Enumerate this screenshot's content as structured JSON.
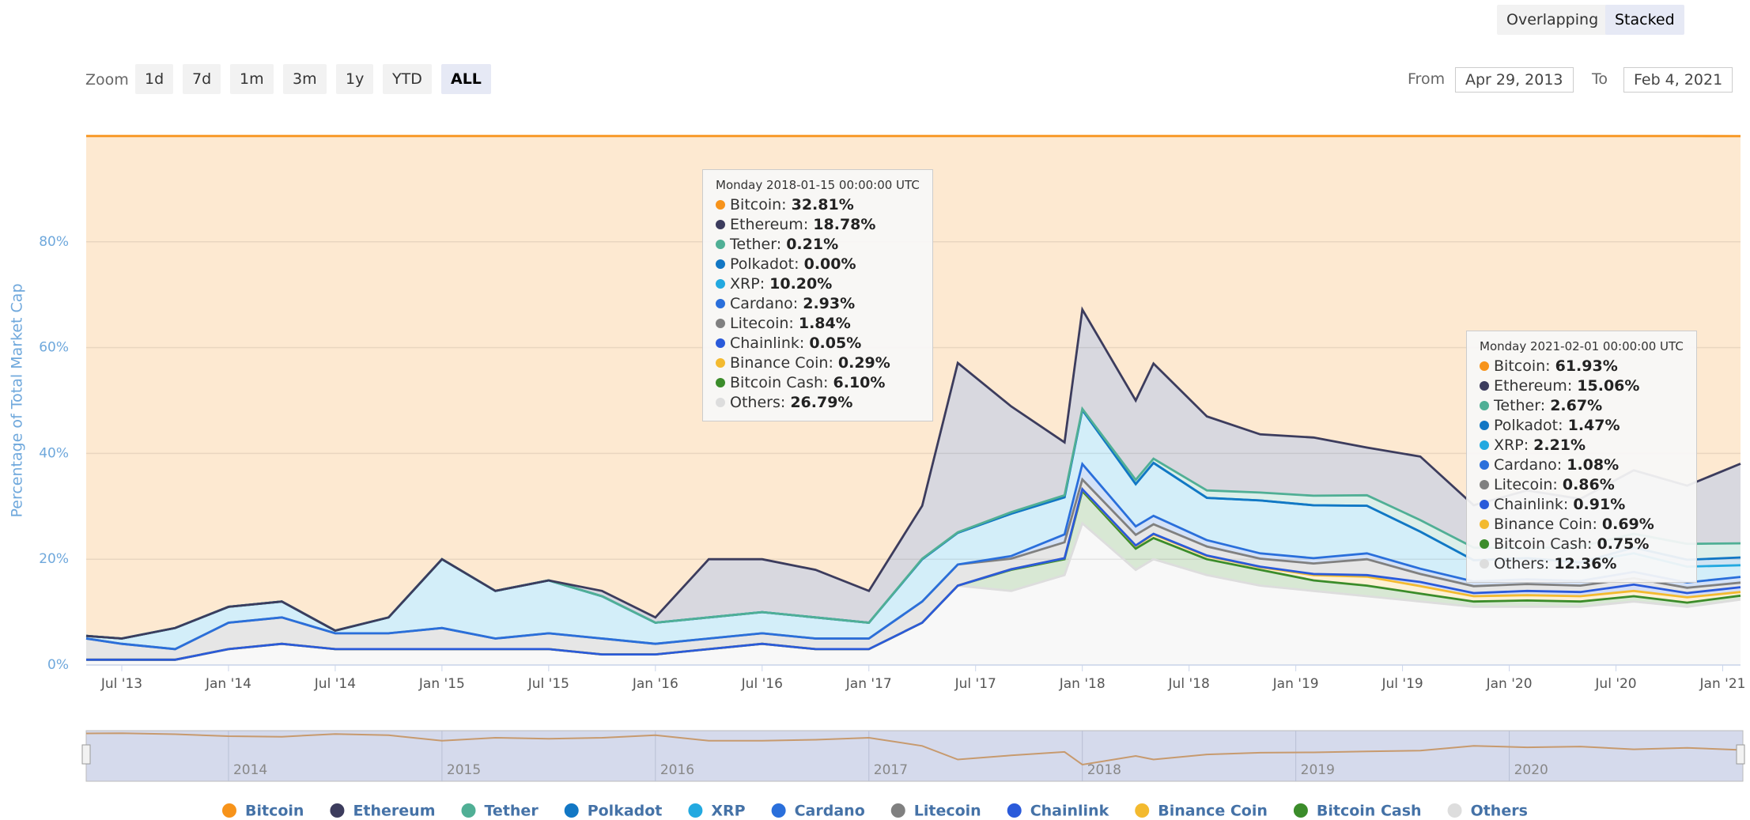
{
  "chart_data": {
    "type": "stacked_area",
    "y_label": "Percentage of Total Market Cap",
    "controls": {
      "modes": [
        "Overlapping",
        "Stacked"
      ],
      "zoom_label": "Zoom",
      "zoom": [
        "1d",
        "7d",
        "1m",
        "3m",
        "1y",
        "YTD",
        "ALL"
      ],
      "from_label": "From",
      "from": "Apr 29, 2013",
      "to_label": "To",
      "to": "Feb 4, 2021"
    },
    "x": [
      "2013-05",
      "2013-07",
      "2013-10",
      "2014-01",
      "2014-04",
      "2014-07",
      "2014-10",
      "2015-01",
      "2015-04",
      "2015-07",
      "2015-10",
      "2016-01",
      "2016-04",
      "2016-07",
      "2016-10",
      "2017-01",
      "2017-04",
      "2017-06",
      "2017-09",
      "2017-12",
      "2018-01",
      "2018-04",
      "2018-05",
      "2018-08",
      "2018-11",
      "2019-02",
      "2019-05",
      "2019-08",
      "2019-11",
      "2020-02",
      "2020-05",
      "2020-08",
      "2020-11",
      "2021-02"
    ],
    "xlim": [
      "2013-05",
      "2021-02"
    ],
    "xticks": [
      {
        "value": "2013-07",
        "label": "Jul '13"
      },
      {
        "value": "2014-01",
        "label": "Jan '14"
      },
      {
        "value": "2014-07",
        "label": "Jul '14"
      },
      {
        "value": "2015-01",
        "label": "Jan '15"
      },
      {
        "value": "2015-07",
        "label": "Jul '15"
      },
      {
        "value": "2016-01",
        "label": "Jan '16"
      },
      {
        "value": "2016-07",
        "label": "Jul '16"
      },
      {
        "value": "2017-01",
        "label": "Jan '17"
      },
      {
        "value": "2017-07",
        "label": "Jul '17"
      },
      {
        "value": "2018-01",
        "label": "Jan '18"
      },
      {
        "value": "2018-07",
        "label": "Jul '18"
      },
      {
        "value": "2019-01",
        "label": "Jan '19"
      },
      {
        "value": "2019-07",
        "label": "Jul '19"
      },
      {
        "value": "2020-01",
        "label": "Jan '20"
      },
      {
        "value": "2020-07",
        "label": "Jul '20"
      },
      {
        "value": "2021-01",
        "label": "Jan '21"
      }
    ],
    "ylim": [
      0,
      100
    ],
    "yticks": [
      {
        "value": 0,
        "label": "0%"
      },
      {
        "value": 20,
        "label": "20%"
      },
      {
        "value": 40,
        "label": "40%"
      },
      {
        "value": 60,
        "label": "60%"
      },
      {
        "value": 80,
        "label": "80%"
      }
    ],
    "grid": true,
    "navigator_ticks": [
      2014,
      2015,
      2016,
      2017,
      2018,
      2019,
      2020
    ],
    "series": [
      {
        "name": "Bitcoin",
        "color": "#f7931a",
        "values": [
          94.5,
          95,
          93,
          89,
          88,
          93.5,
          91,
          80,
          86,
          84,
          86,
          91,
          80,
          80,
          82,
          86,
          69.9,
          42.9,
          51.1,
          57.9,
          32.81,
          50,
          43,
          53,
          56.4,
          57,
          58.9,
          60.6,
          69.8,
          67,
          68.6,
          63.2,
          66.1,
          61.93
        ]
      },
      {
        "name": "Ethereum",
        "color": "#3c3c5d",
        "values": [
          0,
          0,
          0,
          0,
          0,
          0,
          0,
          0,
          0,
          0,
          1,
          1,
          11,
          10,
          9,
          6,
          10,
          32,
          20,
          10,
          18.78,
          15,
          18,
          14,
          11,
          11,
          9,
          12,
          8,
          11,
          9,
          12,
          11,
          15.06
        ]
      },
      {
        "name": "Tether",
        "color": "#50af95",
        "values": [
          0,
          0,
          0,
          0,
          0,
          0,
          0,
          0,
          0,
          0,
          0,
          0,
          0,
          0,
          0,
          0,
          0.1,
          0.1,
          0.3,
          0.4,
          0.21,
          0.8,
          0.8,
          1.4,
          1.5,
          1.8,
          2,
          2.2,
          2.4,
          1.8,
          3,
          2.6,
          3,
          2.67
        ]
      },
      {
        "name": "Polkadot",
        "color": "#1277c4",
        "values": [
          0,
          0,
          0,
          0,
          0,
          0,
          0,
          0,
          0,
          0,
          0,
          0,
          0,
          0,
          0,
          0,
          0,
          0,
          0,
          0,
          0.0,
          0,
          0,
          0,
          0,
          0,
          0,
          0,
          0,
          0,
          0,
          1.1,
          1.3,
          1.47
        ]
      },
      {
        "name": "XRP",
        "color": "#23a9e0",
        "values": [
          0.5,
          1,
          4,
          3,
          3,
          0.5,
          3,
          13,
          9,
          10,
          8,
          4,
          4,
          4,
          4,
          3,
          8,
          6,
          8,
          7,
          10.2,
          8,
          10,
          8,
          10,
          10,
          9,
          7,
          4,
          4,
          3.5,
          3.5,
          3,
          2.21
        ]
      },
      {
        "name": "Cardano",
        "color": "#2a6fdb",
        "values": [
          0,
          0,
          0,
          0,
          0,
          0,
          0,
          0,
          0,
          0,
          0,
          0,
          0,
          0,
          0,
          0,
          0,
          0,
          0.5,
          1.5,
          2.93,
          1.6,
          1.6,
          1.2,
          1,
          1,
          1.1,
          1,
          0.9,
          0.9,
          0.9,
          1.2,
          1,
          1.08
        ]
      },
      {
        "name": "Litecoin",
        "color": "#808080",
        "values": [
          4,
          3,
          2,
          5,
          5,
          3,
          3,
          4,
          2,
          3,
          3,
          2,
          2,
          2,
          2,
          2,
          4,
          4,
          2,
          3,
          1.84,
          2,
          1.8,
          1.7,
          1.5,
          2,
          3,
          1.5,
          1.3,
          1.3,
          1.2,
          1.2,
          1,
          0.86
        ]
      },
      {
        "name": "Chainlink",
        "color": "#2a5ada",
        "values": [
          0,
          0,
          0,
          0,
          0,
          0,
          0,
          0,
          0,
          0,
          0,
          0,
          0,
          0,
          0,
          0,
          0,
          0,
          0,
          0,
          0.05,
          0.1,
          0.1,
          0.1,
          0.1,
          0.2,
          0.3,
          0.8,
          0.6,
          0.8,
          0.8,
          1.2,
          0.8,
          0.91
        ]
      },
      {
        "name": "Binance Coin",
        "color": "#f3ba2f",
        "values": [
          0,
          0,
          0,
          0,
          0,
          0,
          0,
          0,
          0,
          0,
          0,
          0,
          0,
          0,
          0,
          0,
          0,
          0,
          0.1,
          0.2,
          0.29,
          0.5,
          0.7,
          0.6,
          0.5,
          1,
          1.7,
          1.4,
          1,
          1,
          1,
          1,
          1,
          0.69
        ]
      },
      {
        "name": "Bitcoin Cash",
        "color": "#3b8c2a",
        "values": [
          0,
          0,
          0,
          0,
          0,
          0,
          0,
          0,
          0,
          0,
          0,
          0,
          0,
          0,
          0,
          0,
          0,
          0,
          4,
          3,
          6.1,
          4,
          4,
          3,
          3,
          2,
          2,
          1.5,
          1,
          1.2,
          1,
          1,
          0.8,
          0.75
        ]
      },
      {
        "name": "Others",
        "color": "#dddddd",
        "values": [
          1,
          1,
          1,
          3,
          4,
          3,
          3,
          3,
          3,
          3,
          2,
          2,
          3,
          4,
          3,
          3,
          8,
          15,
          14,
          17,
          26.79,
          18,
          20,
          17,
          15,
          14,
          13,
          12,
          11,
          11,
          11,
          12,
          11,
          12.36
        ]
      }
    ],
    "tooltips": [
      {
        "header": "Monday 2018-01-15 00:00:00 UTC",
        "value_labels": [
          "32.81%",
          "18.78%",
          "0.21%",
          "0.00%",
          "10.20%",
          "2.93%",
          "1.84%",
          "0.05%",
          "0.29%",
          "6.10%",
          "26.79%"
        ]
      },
      {
        "header": "Monday 2021-02-01 00:00:00 UTC",
        "value_labels": [
          "61.93%",
          "15.06%",
          "2.67%",
          "1.47%",
          "2.21%",
          "1.08%",
          "0.86%",
          "0.91%",
          "0.69%",
          "0.75%",
          "12.36%"
        ]
      }
    ]
  }
}
